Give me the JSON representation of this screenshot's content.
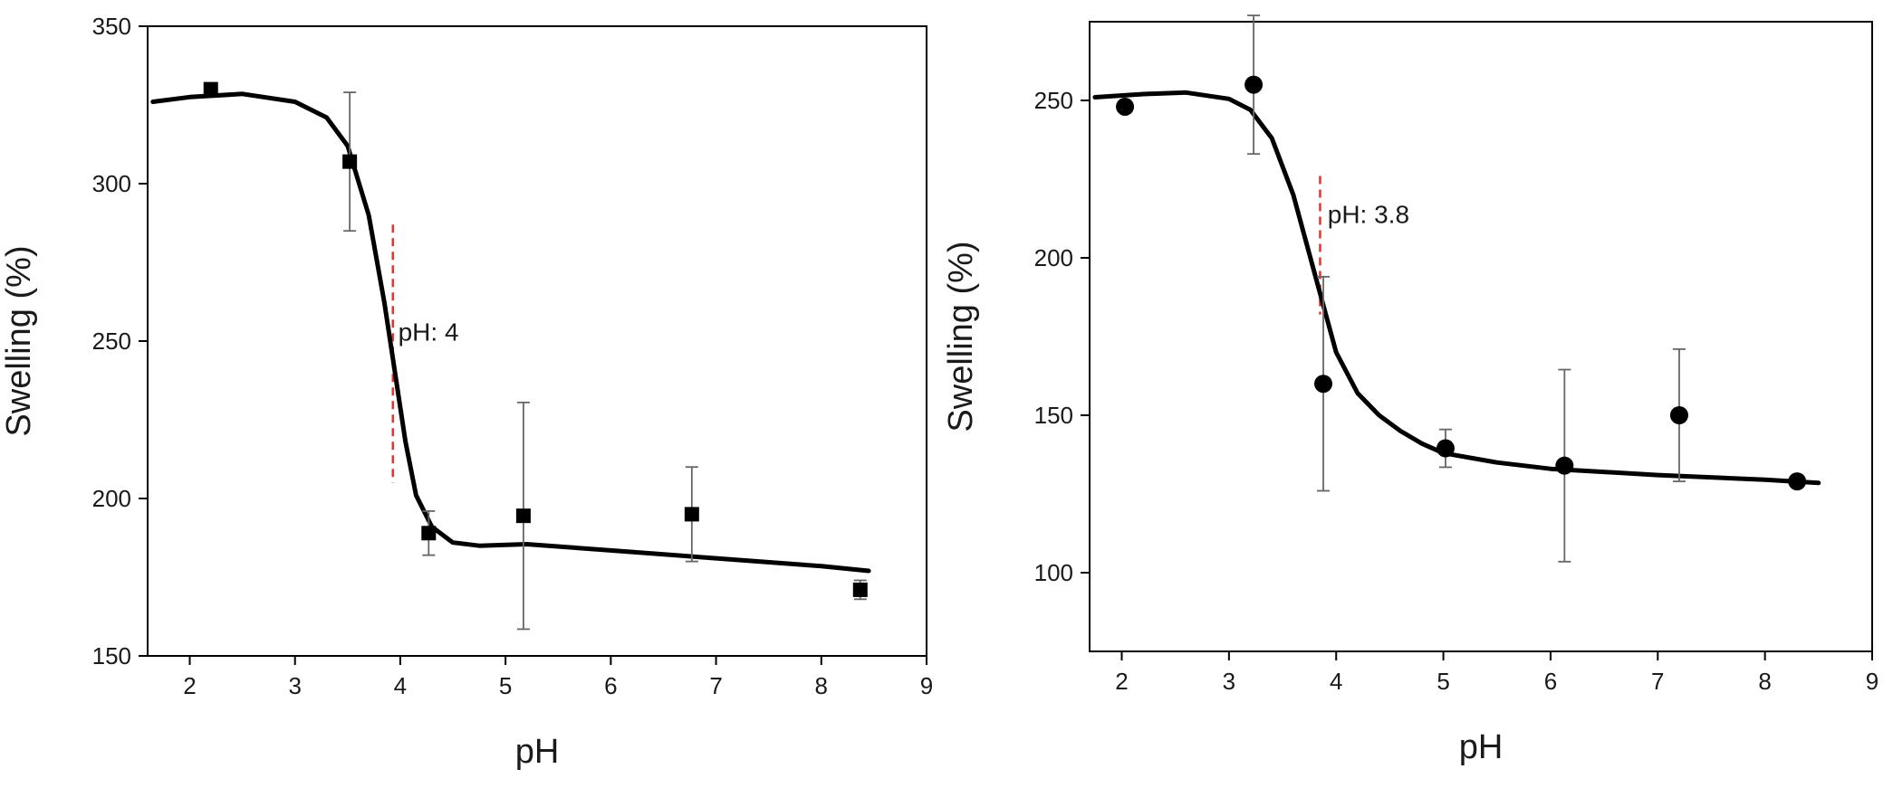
{
  "chart_data": [
    {
      "type": "scatter",
      "xlabel": "pH",
      "ylabel": "Swelling (%)",
      "xlim": [
        1.6,
        9
      ],
      "ylim": [
        150,
        350
      ],
      "xticks": [
        2,
        3,
        4,
        5,
        6,
        7,
        8,
        9
      ],
      "yticks": [
        150,
        200,
        250,
        300,
        350
      ],
      "marker": "square",
      "points": [
        {
          "x": 2.2,
          "y": 330,
          "err": 0
        },
        {
          "x": 3.52,
          "y": 307,
          "err": 22
        },
        {
          "x": 4.27,
          "y": 189,
          "err": 7
        },
        {
          "x": 5.17,
          "y": 194.5,
          "err": 36
        },
        {
          "x": 6.77,
          "y": 195,
          "err": 15
        },
        {
          "x": 8.37,
          "y": 171,
          "err": 3
        }
      ],
      "fit": [
        [
          1.65,
          326
        ],
        [
          2.0,
          327.5
        ],
        [
          2.5,
          328.5
        ],
        [
          3.0,
          326
        ],
        [
          3.3,
          321
        ],
        [
          3.5,
          312
        ],
        [
          3.7,
          290
        ],
        [
          3.85,
          262
        ],
        [
          3.95,
          240
        ],
        [
          4.05,
          218
        ],
        [
          4.15,
          201
        ],
        [
          4.3,
          191
        ],
        [
          4.5,
          186
        ],
        [
          4.75,
          185
        ],
        [
          5.2,
          185.5
        ],
        [
          6.0,
          183.5
        ],
        [
          7.0,
          181
        ],
        [
          8.0,
          178.5
        ],
        [
          8.45,
          177
        ]
      ],
      "threshold_x": 3.93,
      "threshold_yrange": [
        205,
        287
      ],
      "annotation": {
        "text": "pH: 4",
        "x": 3.98,
        "y": 253
      }
    },
    {
      "type": "scatter",
      "xlabel": "pH",
      "ylabel": "Swelling (%)",
      "xlim": [
        1.7,
        9
      ],
      "ylim": [
        75,
        275
      ],
      "xticks": [
        2,
        3,
        4,
        5,
        6,
        7,
        8,
        9
      ],
      "yticks": [
        100,
        150,
        200,
        250
      ],
      "marker": "circle",
      "points": [
        {
          "x": 2.03,
          "y": 248,
          "err": 0
        },
        {
          "x": 3.23,
          "y": 255,
          "err": 22
        },
        {
          "x": 3.88,
          "y": 160,
          "err": 34
        },
        {
          "x": 5.02,
          "y": 139.5,
          "err": 6
        },
        {
          "x": 6.13,
          "y": 134,
          "err": 30.5
        },
        {
          "x": 7.2,
          "y": 150,
          "err": 21
        },
        {
          "x": 8.3,
          "y": 129,
          "err": 0
        }
      ],
      "fit": [
        [
          1.75,
          251
        ],
        [
          2.2,
          252
        ],
        [
          2.6,
          252.5
        ],
        [
          3.0,
          250.5
        ],
        [
          3.2,
          247
        ],
        [
          3.4,
          238
        ],
        [
          3.6,
          220
        ],
        [
          3.8,
          195
        ],
        [
          4.0,
          170
        ],
        [
          4.2,
          157
        ],
        [
          4.4,
          150
        ],
        [
          4.6,
          145
        ],
        [
          4.8,
          141
        ],
        [
          5.0,
          138
        ],
        [
          5.5,
          135
        ],
        [
          6.0,
          133
        ],
        [
          7.0,
          131
        ],
        [
          8.0,
          129.5
        ],
        [
          8.5,
          128.5
        ]
      ],
      "threshold_x": 3.85,
      "threshold_yrange": [
        182,
        226
      ],
      "annotation": {
        "text": "pH: 3.8",
        "x": 3.92,
        "y": 214
      }
    }
  ]
}
